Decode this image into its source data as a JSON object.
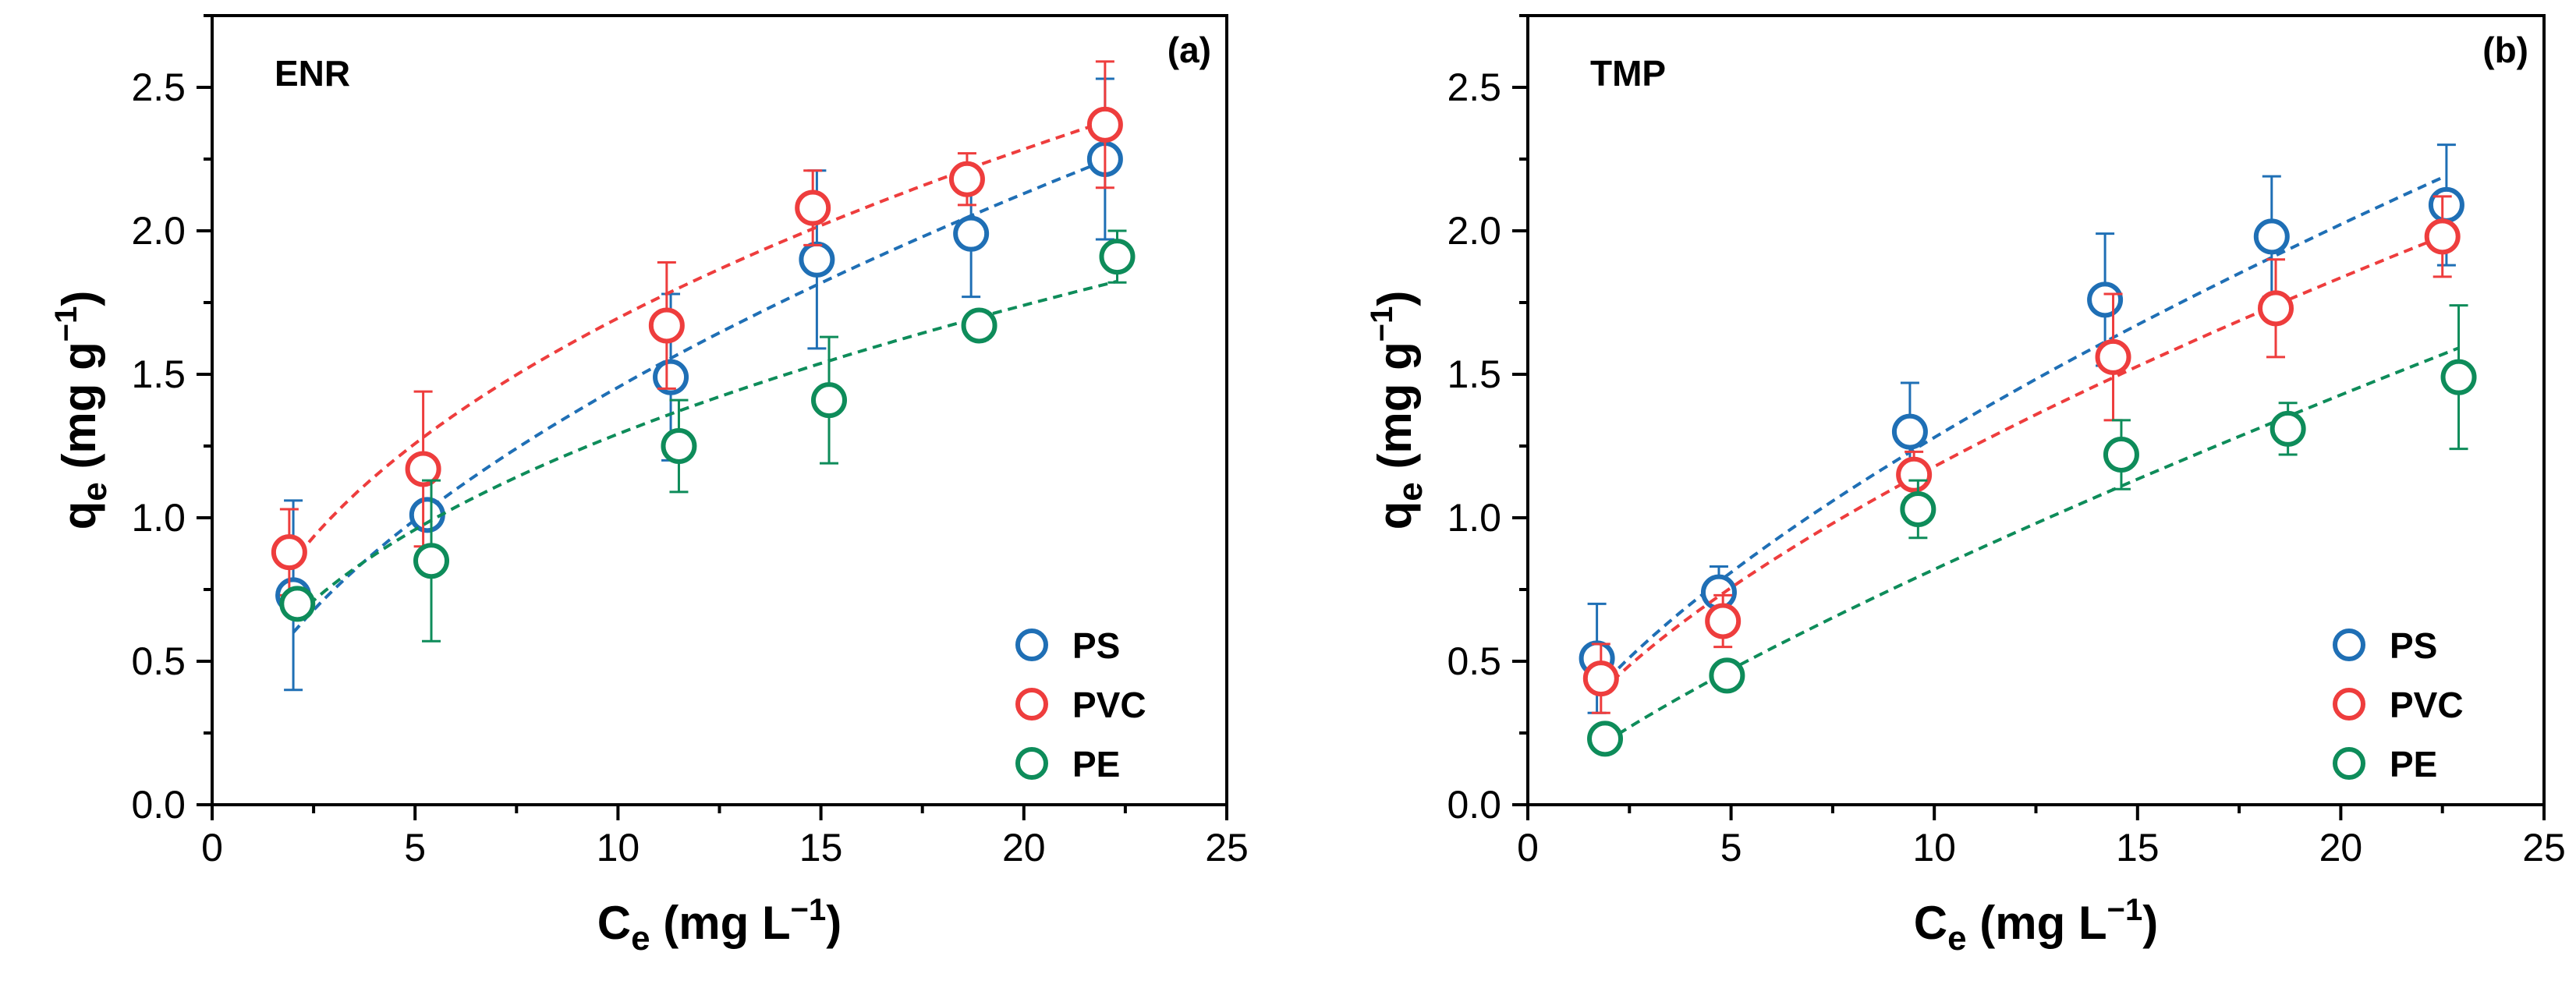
{
  "colors": {
    "PS": "#1f6fb5",
    "PVC": "#ee3d3d",
    "PE": "#0e8c5a"
  },
  "chart_data": [
    {
      "type": "scatter",
      "panel_label": "(a)",
      "title": "ENR",
      "xlabel": {
        "main": "C",
        "sub": "e",
        "rest": " (mg L",
        "sup": "−1",
        "close": ")"
      },
      "ylabel": {
        "main": "q",
        "sub": "e",
        "rest": " (mg g",
        "sup": "−1",
        "close": ")"
      },
      "xlim": [
        0,
        25
      ],
      "ylim": [
        0,
        2.75
      ],
      "xticks": [
        0,
        5,
        10,
        15,
        20,
        25
      ],
      "xtick_labels": [
        "0",
        "5",
        "10",
        "15",
        "20",
        "25"
      ],
      "yticks": [
        0,
        0.5,
        1.0,
        1.5,
        2.0,
        2.5
      ],
      "ytick_labels": [
        "0.0",
        "0.5",
        "1.0",
        "1.5",
        "2.0",
        "2.5"
      ],
      "legend_position": "bottom-right",
      "series": [
        {
          "name": "PS",
          "x": [
            2.0,
            5.3,
            11.3,
            14.9,
            18.7,
            22.0
          ],
          "y": [
            0.73,
            1.01,
            1.49,
            1.9,
            1.99,
            2.25
          ],
          "err": [
            0.33,
            0.02,
            0.29,
            0.31,
            0.22,
            0.28
          ],
          "fit": {
            "K": 0.41,
            "n": 0.55
          }
        },
        {
          "name": "PVC",
          "x": [
            1.9,
            5.2,
            11.2,
            14.8,
            18.6,
            22.0
          ],
          "y": [
            0.88,
            1.17,
            1.67,
            2.08,
            2.18,
            2.37
          ],
          "err": [
            0.15,
            0.27,
            0.22,
            0.13,
            0.09,
            0.22
          ],
          "fit": {
            "K": 0.63,
            "n": 0.43
          }
        },
        {
          "name": "PE",
          "x": [
            2.1,
            5.4,
            11.5,
            15.2,
            18.9,
            22.3
          ],
          "y": [
            0.7,
            0.85,
            1.25,
            1.41,
            1.67,
            1.91
          ],
          "err": [
            0.05,
            0.28,
            0.16,
            0.22,
            0.05,
            0.09
          ],
          "fit": {
            "K": 0.48,
            "n": 0.43
          }
        }
      ]
    },
    {
      "type": "scatter",
      "panel_label": "(b)",
      "title": "TMP",
      "xlabel": {
        "main": "C",
        "sub": "e",
        "rest": " (mg L",
        "sup": "−1",
        "close": ")"
      },
      "ylabel": {
        "main": "q",
        "sub": "e",
        "rest": " (mg g",
        "sup": "−1",
        "close": ")"
      },
      "xlim": [
        0,
        25
      ],
      "ylim": [
        0,
        2.75
      ],
      "xticks": [
        0,
        5,
        10,
        15,
        20,
        25
      ],
      "xtick_labels": [
        "0",
        "5",
        "10",
        "15",
        "20",
        "25"
      ],
      "yticks": [
        0,
        0.5,
        1.0,
        1.5,
        2.0,
        2.5
      ],
      "ytick_labels": [
        "0.0",
        "0.5",
        "1.0",
        "1.5",
        "2.0",
        "2.5"
      ],
      "legend_position": "bottom-right",
      "series": [
        {
          "name": "PS",
          "x": [
            1.7,
            4.7,
            9.4,
            14.2,
            18.3,
            22.6
          ],
          "y": [
            0.51,
            0.74,
            1.3,
            1.76,
            1.98,
            2.09
          ],
          "err": [
            0.19,
            0.09,
            0.17,
            0.23,
            0.21,
            0.21
          ],
          "fit": {
            "K": 0.28,
            "n": 0.66
          }
        },
        {
          "name": "PVC",
          "x": [
            1.8,
            4.8,
            9.5,
            14.4,
            18.4,
            22.5
          ],
          "y": [
            0.44,
            0.64,
            1.15,
            1.56,
            1.73,
            1.98
          ],
          "err": [
            0.12,
            0.09,
            0.08,
            0.22,
            0.17,
            0.14
          ],
          "fit": {
            "K": 0.27,
            "n": 0.64
          }
        },
        {
          "name": "PE",
          "x": [
            1.9,
            4.9,
            9.6,
            14.6,
            18.7,
            22.9
          ],
          "y": [
            0.23,
            0.45,
            1.03,
            1.22,
            1.31,
            1.49
          ],
          "err": [
            0.01,
            0.05,
            0.1,
            0.12,
            0.09,
            0.25
          ],
          "fit": {
            "K": 0.13,
            "n": 0.8
          }
        }
      ]
    }
  ]
}
